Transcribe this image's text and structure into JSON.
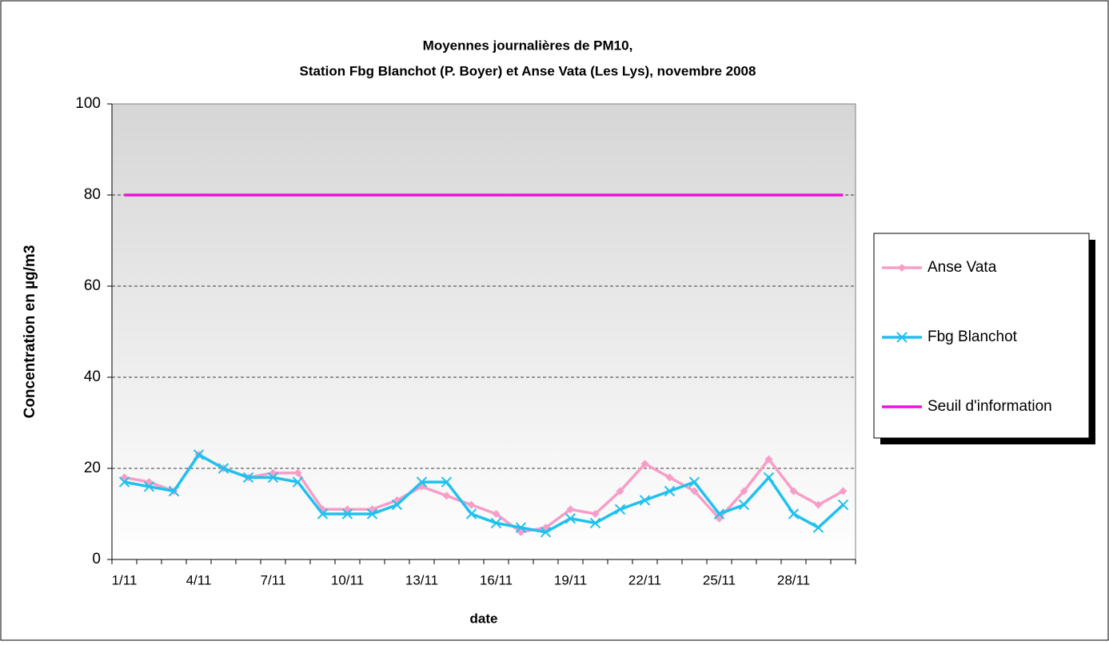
{
  "chart_data": {
    "type": "line",
    "title": [
      "Moyennes journalières de PM10,",
      "Station Fbg Blanchot (P. Boyer) et Anse Vata (Les Lys), novembre 2008"
    ],
    "x_label": "date",
    "y_label": "Concentration en µg/m3",
    "categories": [
      "1/11",
      null,
      null,
      "4/11",
      null,
      null,
      "7/11",
      null,
      null,
      "10/11",
      null,
      null,
      "13/11",
      null,
      null,
      "16/11",
      null,
      null,
      "19/11",
      null,
      null,
      "22/11",
      null,
      null,
      "25/11",
      null,
      null,
      "28/11",
      null,
      null
    ],
    "series": [
      {
        "name": "Anse Vata",
        "color": "#f79ec8",
        "marker": "diamond",
        "values": [
          18,
          17,
          15,
          23,
          20,
          18,
          19,
          19,
          11,
          11,
          11,
          13,
          16,
          14,
          12,
          10,
          6,
          7,
          11,
          10,
          15,
          21,
          18,
          15,
          9,
          15,
          22,
          15,
          12,
          15
        ]
      },
      {
        "name": "Fbg Blanchot",
        "color": "#1fc1ee",
        "marker": "x",
        "values": [
          17,
          16,
          15,
          23,
          20,
          18,
          18,
          17,
          10,
          10,
          10,
          12,
          17,
          17,
          10,
          8,
          7,
          6,
          9,
          8,
          11,
          13,
          15,
          17,
          10,
          12,
          18,
          10,
          7,
          12
        ]
      },
      {
        "name": "Seuil d'information",
        "color": "#ee11dd",
        "marker": "none",
        "values": [
          80,
          80,
          80,
          80,
          80,
          80,
          80,
          80,
          80,
          80,
          80,
          80,
          80,
          80,
          80,
          80,
          80,
          80,
          80,
          80,
          80,
          80,
          80,
          80,
          80,
          80,
          80,
          80,
          80,
          80
        ]
      }
    ],
    "ylim": [
      0,
      100
    ],
    "yticks": [
      0,
      20,
      40,
      60,
      80,
      100
    ],
    "grid": true,
    "legend": "right"
  }
}
